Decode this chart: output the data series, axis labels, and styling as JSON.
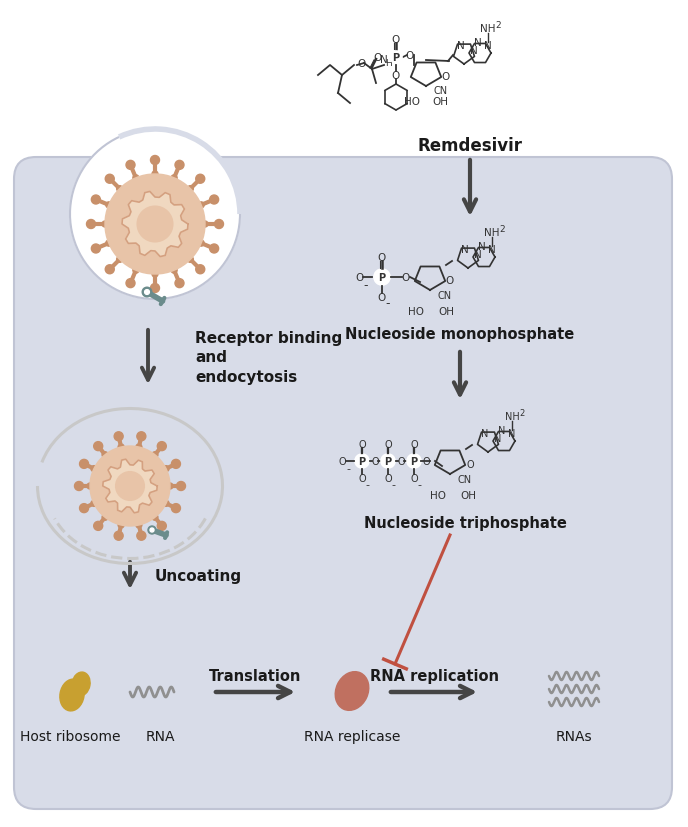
{
  "background_color": "#ffffff",
  "panel_color": "#d8dce8",
  "text_labels": {
    "remdesivir": "Remdesivir",
    "nucleoside_mono": "Nucleoside monophosphate",
    "nucleoside_tri": "Nucleoside triphosphate",
    "receptor_binding": "Receptor binding\nand\nendocytosis",
    "uncoating": "Uncoating",
    "translation": "Translation",
    "rna_replication": "RNA replication",
    "host_ribosome": "Host ribosome",
    "rna": "RNA",
    "rna_replicase": "RNA replicase",
    "rnas": "RNAs"
  },
  "colors": {
    "arrow_dark": "#454545",
    "arrow_inhibit": "#c05040",
    "virus_body": "#e8c4a8",
    "virus_body_inner": "#f0d8c0",
    "virus_spike": "#c8906a",
    "virus_gear": "#d4a080",
    "wrench": "#6b8c8c",
    "ribosome": "#c8a030",
    "replicase": "#c07060",
    "rna_wave": "#909090",
    "membrane": "#c8c8c8",
    "chem_line": "#333333",
    "panel_border": "#c0c4d4"
  }
}
